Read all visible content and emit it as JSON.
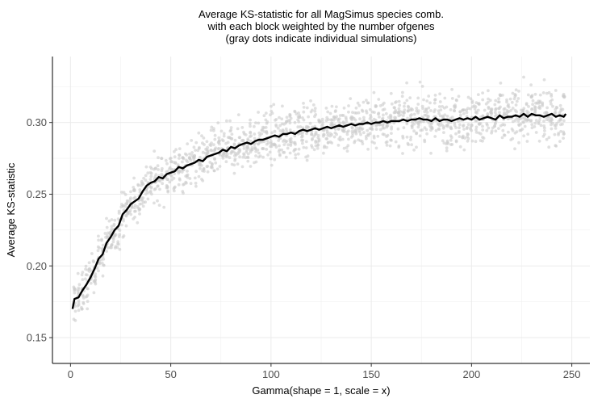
{
  "chart_data": {
    "type": "scatter",
    "title": [
      "Average KS-statistic for all MagSimus species comb.",
      "with each block weighted by the number ofgenes",
      "(gray dots indicate individual simulations)"
    ],
    "xlabel": "Gamma(shape = 1, scale = x)",
    "ylabel": "Average KS-statistic",
    "xlim": [
      -9,
      259
    ],
    "ylim": [
      0.132,
      0.346
    ],
    "x_ticks": [
      0,
      50,
      100,
      150,
      200,
      250
    ],
    "x_tick_labels": [
      "0",
      "50",
      "100",
      "150",
      "200",
      "250"
    ],
    "y_ticks": [
      0.15,
      0.2,
      0.25,
      0.3
    ],
    "y_tick_labels": [
      "0.15",
      "0.20",
      "0.25",
      "0.30"
    ],
    "grid": true,
    "legend": "none",
    "series": [
      {
        "type": "line",
        "color": "#000000",
        "x": [
          1,
          2,
          4,
          6,
          8,
          10,
          12,
          14,
          16,
          18,
          20,
          22,
          24,
          26,
          28,
          30,
          32,
          34,
          36,
          38,
          40,
          42,
          44,
          46,
          48,
          50,
          52,
          54,
          56,
          58,
          60,
          62,
          64,
          66,
          68,
          70,
          72,
          74,
          76,
          78,
          80,
          82,
          84,
          86,
          88,
          90,
          92,
          94,
          96,
          98,
          100,
          102,
          104,
          106,
          108,
          110,
          112,
          114,
          116,
          118,
          120,
          122,
          124,
          126,
          128,
          130,
          132,
          134,
          136,
          138,
          140,
          142,
          144,
          146,
          148,
          150,
          152,
          154,
          156,
          158,
          160,
          162,
          164,
          166,
          168,
          170,
          172,
          174,
          176,
          178,
          180,
          182,
          184,
          186,
          188,
          190,
          192,
          194,
          196,
          198,
          200,
          202,
          204,
          206,
          208,
          210,
          212,
          214,
          216,
          218,
          220,
          222,
          224,
          226,
          228,
          230,
          232,
          234,
          236,
          238,
          240,
          242,
          244,
          246,
          247
        ],
        "y": [
          0.17,
          0.177,
          0.178,
          0.183,
          0.187,
          0.192,
          0.198,
          0.205,
          0.208,
          0.216,
          0.22,
          0.225,
          0.228,
          0.236,
          0.239,
          0.243,
          0.245,
          0.247,
          0.252,
          0.256,
          0.258,
          0.259,
          0.262,
          0.261,
          0.264,
          0.265,
          0.266,
          0.269,
          0.268,
          0.27,
          0.271,
          0.272,
          0.274,
          0.273,
          0.276,
          0.277,
          0.278,
          0.279,
          0.281,
          0.28,
          0.283,
          0.282,
          0.284,
          0.285,
          0.286,
          0.285,
          0.287,
          0.288,
          0.288,
          0.289,
          0.29,
          0.291,
          0.29,
          0.292,
          0.292,
          0.293,
          0.292,
          0.294,
          0.295,
          0.294,
          0.295,
          0.296,
          0.295,
          0.296,
          0.297,
          0.296,
          0.297,
          0.298,
          0.297,
          0.298,
          0.299,
          0.298,
          0.299,
          0.299,
          0.3,
          0.299,
          0.3,
          0.3,
          0.301,
          0.3,
          0.301,
          0.301,
          0.301,
          0.302,
          0.301,
          0.302,
          0.302,
          0.303,
          0.302,
          0.302,
          0.301,
          0.303,
          0.301,
          0.302,
          0.302,
          0.301,
          0.302,
          0.303,
          0.302,
          0.303,
          0.302,
          0.304,
          0.302,
          0.303,
          0.304,
          0.303,
          0.302,
          0.305,
          0.303,
          0.304,
          0.304,
          0.305,
          0.304,
          0.306,
          0.304,
          0.306,
          0.305,
          0.305,
          0.304,
          0.305,
          0.306,
          0.304,
          0.305,
          0.304,
          0.306
        ]
      },
      {
        "type": "scatter",
        "color": "#cccccc",
        "alpha": 0.6,
        "x_start": 2,
        "x_end": 246,
        "x_step": 2,
        "center_offset": [
          -0.036,
          0.0,
          0.003,
          0.005,
          0.005,
          0.005,
          0.004,
          0.003
        ],
        "spread_at_x": [
          1,
          10,
          25,
          50,
          100,
          150,
          200,
          246
        ],
        "spread": [
          0.018,
          0.016,
          0.016,
          0.018,
          0.019,
          0.02,
          0.02,
          0.02
        ]
      }
    ]
  }
}
